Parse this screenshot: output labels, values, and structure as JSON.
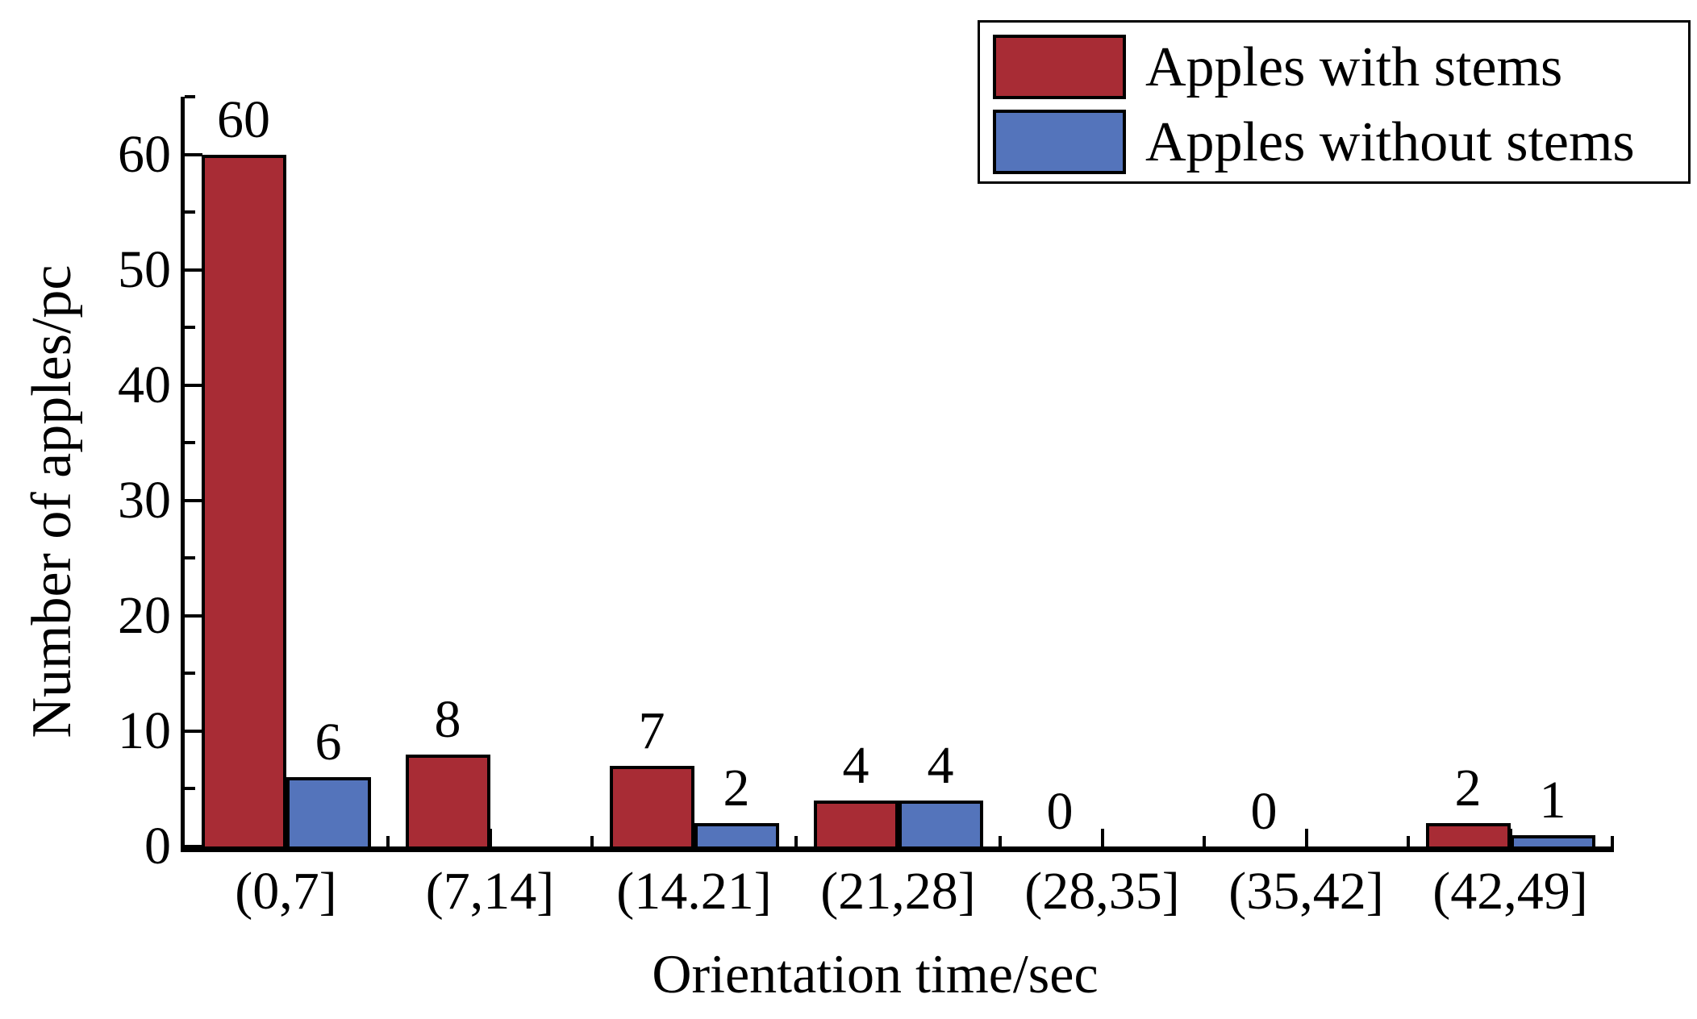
{
  "chart_data": {
    "type": "bar",
    "title": "",
    "xlabel": "Orientation time/sec",
    "ylabel": "Number of apples/pc",
    "categories": [
      "(0,7]",
      "(7,14]",
      "(14.21]",
      "(21,28]",
      "(28,35]",
      "(35,42]",
      "(42,49]"
    ],
    "series": [
      {
        "name": "Apples with stems",
        "color": "#A82C35",
        "values": [
          60,
          8,
          7,
          4,
          0,
          0,
          2
        ],
        "labels": [
          "60",
          "8",
          "7",
          "4",
          "0",
          "0",
          "2"
        ]
      },
      {
        "name": "Apples without stems",
        "color": "#5474BB",
        "values": [
          6,
          0,
          2,
          4,
          0,
          0,
          1
        ],
        "labels": [
          "6",
          "",
          "2",
          "4",
          "",
          "",
          "1"
        ]
      }
    ],
    "ylim": [
      0,
      65
    ],
    "y_major_ticks": [
      0,
      10,
      20,
      30,
      40,
      50,
      60
    ],
    "y_minor_ticks": [
      5,
      15,
      25,
      35,
      45,
      55,
      65
    ],
    "legend_position": "top-right",
    "grid": false,
    "axis_color": "#000000",
    "background": "#FFFFFF"
  }
}
